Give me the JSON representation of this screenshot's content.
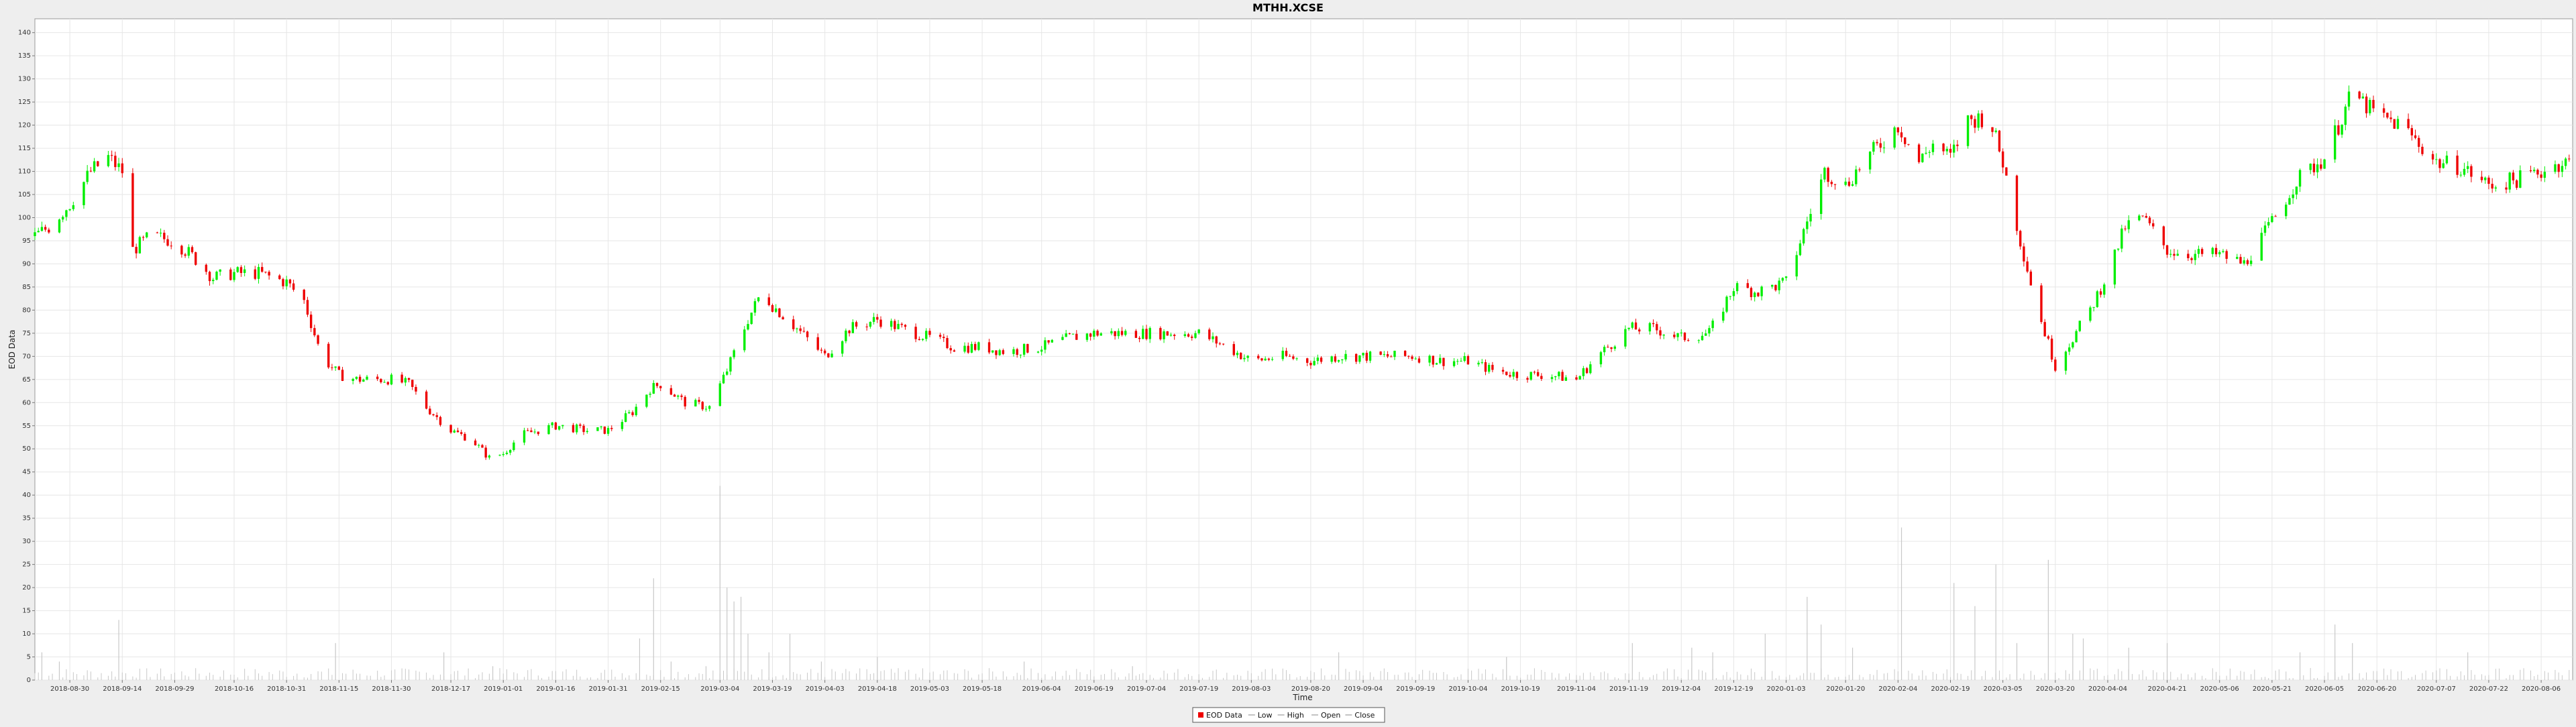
{
  "chart_data": {
    "type": "candlestick",
    "title": "MTHH.XCSE",
    "xlabel": "Time",
    "ylabel": "EOD Data",
    "ylim": [
      0,
      143
    ],
    "yticks": [
      0,
      5,
      10,
      15,
      20,
      25,
      30,
      35,
      40,
      45,
      50,
      55,
      60,
      65,
      70,
      75,
      80,
      85,
      90,
      95,
      100,
      105,
      110,
      115,
      120,
      125,
      130,
      135,
      140
    ],
    "xlim": [
      "2018-08-20",
      "2020-08-15"
    ],
    "xticks": [
      "2018-08-30",
      "2018-09-14",
      "2018-09-29",
      "2018-10-16",
      "2018-10-31",
      "2018-11-15",
      "2018-11-30",
      "2018-12-17",
      "2019-01-01",
      "2019-01-16",
      "2019-01-31",
      "2019-02-15",
      "2019-03-04",
      "2019-03-19",
      "2019-04-03",
      "2019-04-18",
      "2019-05-03",
      "2019-05-18",
      "2019-06-04",
      "2019-06-19",
      "2019-07-04",
      "2019-07-19",
      "2019-08-03",
      "2019-08-20",
      "2019-09-04",
      "2019-09-19",
      "2019-10-04",
      "2019-10-19",
      "2019-11-04",
      "2019-11-19",
      "2019-12-04",
      "2019-12-19",
      "2020-01-03",
      "2020-01-20",
      "2020-02-04",
      "2020-02-19",
      "2020-03-05",
      "2020-03-20",
      "2020-04-04",
      "2020-04-21",
      "2020-05-06",
      "2020-05-21",
      "2020-06-05",
      "2020-06-20",
      "2020-07-07",
      "2020-07-22",
      "2020-08-06"
    ],
    "grid": true,
    "colors": {
      "up": "#00ee00",
      "down": "#ee0000",
      "volume": "#c8c8c8",
      "grid": "#e6e6e6"
    },
    "legend": {
      "placement": "bottom-center",
      "items": [
        {
          "label": "EOD Data",
          "marker": "red-square"
        },
        {
          "label": "Low",
          "marker": "line"
        },
        {
          "label": "High",
          "marker": "line"
        },
        {
          "label": "Open",
          "marker": "line"
        },
        {
          "label": "Close",
          "marker": "line"
        }
      ]
    },
    "series": [
      {
        "name": "EOD Data",
        "trend_points": [
          [
            "2018-08-20",
            96
          ],
          [
            "2018-08-24",
            98
          ],
          [
            "2018-08-30",
            103
          ],
          [
            "2018-09-05",
            110
          ],
          [
            "2018-09-10",
            113
          ],
          [
            "2018-09-14",
            110
          ],
          [
            "2018-09-17",
            93
          ],
          [
            "2018-09-22",
            96
          ],
          [
            "2018-09-29",
            95
          ],
          [
            "2018-10-05",
            91
          ],
          [
            "2018-10-10",
            87
          ],
          [
            "2018-10-16",
            88
          ],
          [
            "2018-10-23",
            88
          ],
          [
            "2018-10-31",
            86
          ],
          [
            "2018-11-05",
            82
          ],
          [
            "2018-11-10",
            70
          ],
          [
            "2018-11-15",
            66
          ],
          [
            "2018-11-20",
            65
          ],
          [
            "2018-11-30",
            65
          ],
          [
            "2018-12-05",
            64
          ],
          [
            "2018-12-10",
            59
          ],
          [
            "2018-12-17",
            54
          ],
          [
            "2018-12-23",
            52
          ],
          [
            "2018-12-28",
            48
          ],
          [
            "2019-01-01",
            49
          ],
          [
            "2019-01-06",
            53
          ],
          [
            "2019-01-16",
            55
          ],
          [
            "2019-01-25",
            54
          ],
          [
            "2019-01-31",
            54
          ],
          [
            "2019-02-07",
            58
          ],
          [
            "2019-02-12",
            63
          ],
          [
            "2019-02-15",
            64
          ],
          [
            "2019-02-22",
            60
          ],
          [
            "2019-03-01",
            59
          ],
          [
            "2019-03-06",
            67
          ],
          [
            "2019-03-12",
            78
          ],
          [
            "2019-03-16",
            84
          ],
          [
            "2019-03-19",
            81
          ],
          [
            "2019-03-26",
            76
          ],
          [
            "2019-04-03",
            70
          ],
          [
            "2019-04-10",
            76
          ],
          [
            "2019-04-18",
            78
          ],
          [
            "2019-04-25",
            76
          ],
          [
            "2019-05-03",
            74
          ],
          [
            "2019-05-10",
            72
          ],
          [
            "2019-05-18",
            72
          ],
          [
            "2019-05-25",
            71
          ],
          [
            "2019-06-04",
            72
          ],
          [
            "2019-06-12",
            74
          ],
          [
            "2019-06-19",
            75
          ],
          [
            "2019-06-26",
            75
          ],
          [
            "2019-07-04",
            75
          ],
          [
            "2019-07-19",
            75
          ],
          [
            "2019-07-27",
            72
          ],
          [
            "2019-08-03",
            69
          ],
          [
            "2019-08-12",
            70
          ],
          [
            "2019-08-20",
            69
          ],
          [
            "2019-08-28",
            70
          ],
          [
            "2019-09-04",
            70
          ],
          [
            "2019-09-12",
            70
          ],
          [
            "2019-09-19",
            70
          ],
          [
            "2019-09-26",
            69
          ],
          [
            "2019-10-04",
            69
          ],
          [
            "2019-10-11",
            67
          ],
          [
            "2019-10-19",
            66
          ],
          [
            "2019-10-27",
            66
          ],
          [
            "2019-11-04",
            65
          ],
          [
            "2019-11-10",
            70
          ],
          [
            "2019-11-19",
            76
          ],
          [
            "2019-11-26",
            76
          ],
          [
            "2019-12-04",
            74
          ],
          [
            "2019-12-12",
            75
          ],
          [
            "2019-12-19",
            85
          ],
          [
            "2019-12-26",
            84
          ],
          [
            "2020-01-03",
            86
          ],
          [
            "2020-01-08",
            97
          ],
          [
            "2020-01-14",
            110
          ],
          [
            "2020-01-20",
            107
          ],
          [
            "2020-01-25",
            112
          ],
          [
            "2020-02-04",
            120
          ],
          [
            "2020-02-10",
            112
          ],
          [
            "2020-02-14",
            116
          ],
          [
            "2020-02-19",
            113
          ],
          [
            "2020-02-24",
            121
          ],
          [
            "2020-03-01",
            122
          ],
          [
            "2020-03-05",
            112
          ],
          [
            "2020-03-10",
            95
          ],
          [
            "2020-03-15",
            80
          ],
          [
            "2020-03-20",
            68
          ],
          [
            "2020-03-25",
            74
          ],
          [
            "2020-03-30",
            80
          ],
          [
            "2020-04-04",
            88
          ],
          [
            "2020-04-09",
            98
          ],
          [
            "2020-04-14",
            100
          ],
          [
            "2020-04-21",
            93
          ],
          [
            "2020-04-28",
            92
          ],
          [
            "2020-05-06",
            92
          ],
          [
            "2020-05-13",
            90
          ],
          [
            "2020-05-21",
            99
          ],
          [
            "2020-05-28",
            108
          ],
          [
            "2020-06-05",
            113
          ],
          [
            "2020-06-09",
            120
          ],
          [
            "2020-06-13",
            127
          ],
          [
            "2020-06-20",
            122
          ],
          [
            "2020-06-27",
            120
          ],
          [
            "2020-07-07",
            112
          ],
          [
            "2020-07-14",
            111
          ],
          [
            "2020-07-22",
            107
          ],
          [
            "2020-07-29",
            108
          ],
          [
            "2020-08-06",
            110
          ],
          [
            "2020-08-12",
            112
          ]
        ]
      }
    ],
    "volume_spikes": [
      [
        "2018-08-22",
        6
      ],
      [
        "2018-08-27",
        4
      ],
      [
        "2018-09-13",
        13
      ],
      [
        "2018-11-14",
        8
      ],
      [
        "2018-12-15",
        6
      ],
      [
        "2018-12-29",
        3
      ],
      [
        "2019-02-09",
        9
      ],
      [
        "2019-02-13",
        22
      ],
      [
        "2019-02-18",
        4
      ],
      [
        "2019-02-28",
        3
      ],
      [
        "2019-03-04",
        42
      ],
      [
        "2019-03-06",
        20
      ],
      [
        "2019-03-08",
        17
      ],
      [
        "2019-03-10",
        18
      ],
      [
        "2019-03-12",
        10
      ],
      [
        "2019-03-18",
        6
      ],
      [
        "2019-03-24",
        10
      ],
      [
        "2019-04-02",
        4
      ],
      [
        "2019-04-18",
        5
      ],
      [
        "2019-05-30",
        4
      ],
      [
        "2019-06-30",
        3
      ],
      [
        "2019-08-28",
        6
      ],
      [
        "2019-10-15",
        5
      ],
      [
        "2019-11-20",
        8
      ],
      [
        "2019-12-07",
        7
      ],
      [
        "2019-12-13",
        6
      ],
      [
        "2019-12-28",
        10
      ],
      [
        "2020-01-09",
        18
      ],
      [
        "2020-01-13",
        12
      ],
      [
        "2020-01-22",
        7
      ],
      [
        "2020-02-05",
        33
      ],
      [
        "2020-02-20",
        21
      ],
      [
        "2020-02-26",
        16
      ],
      [
        "2020-03-03",
        25
      ],
      [
        "2020-03-09",
        8
      ],
      [
        "2020-03-18",
        26
      ],
      [
        "2020-03-25",
        10
      ],
      [
        "2020-03-28",
        9
      ],
      [
        "2020-04-10",
        7
      ],
      [
        "2020-04-21",
        8
      ],
      [
        "2020-05-29",
        6
      ],
      [
        "2020-06-08",
        12
      ],
      [
        "2020-06-13",
        8
      ],
      [
        "2020-07-16",
        6
      ]
    ]
  }
}
